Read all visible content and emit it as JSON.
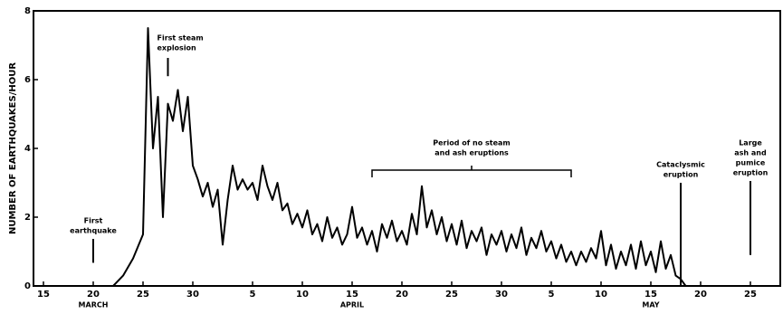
{
  "chart_data": {
    "type": "line",
    "y_label": "NUMBER OF EARTHQUAKES/HOUR",
    "x": [
      81,
      82,
      83,
      84,
      84.5,
      85,
      85.5,
      86,
      86.5,
      87,
      87.5,
      88,
      88.5,
      89,
      89.5,
      90,
      90.5,
      91,
      91.5,
      92,
      92.5,
      93,
      93.5,
      94,
      94.5,
      95,
      95.5,
      96,
      96.5,
      97,
      97.5,
      98,
      98.5,
      99,
      99.5,
      100,
      100.5,
      101,
      101.5,
      102,
      102.5,
      103,
      103.5,
      104,
      104.5,
      105,
      105.5,
      106,
      106.5,
      107,
      107.5,
      108,
      108.5,
      109,
      109.5,
      110,
      110.5,
      111,
      111.5,
      112,
      112.5,
      113,
      113.5,
      114,
      114.5,
      115,
      115.5,
      116,
      116.5,
      117,
      117.5,
      118,
      118.5,
      119,
      119.5,
      120,
      120.5,
      121,
      121.5,
      122,
      122.5,
      123,
      123.5,
      124,
      124.5,
      125,
      125.5,
      126,
      126.5,
      127,
      127.5,
      128,
      128.5,
      129,
      129.5,
      130,
      130.5,
      131,
      131.5,
      132,
      132.5,
      133,
      133.5,
      134,
      134.5,
      135,
      135.5,
      136,
      136.5,
      137,
      137.5,
      138,
      138.5
    ],
    "series": [
      {
        "color": "#000000",
        "values": [
          0,
          0.3,
          0.8,
          1.5,
          7.5,
          4,
          5.5,
          2,
          5.3,
          4.8,
          5.7,
          4.5,
          5.5,
          3.5,
          3.1,
          2.6,
          3,
          2.3,
          2.8,
          1.2,
          2.5,
          3.5,
          2.8,
          3.1,
          2.8,
          3.0,
          2.5,
          3.5,
          2.9,
          2.5,
          3.0,
          2.2,
          2.4,
          1.8,
          2.1,
          1.7,
          2.2,
          1.5,
          1.8,
          1.3,
          2.0,
          1.4,
          1.7,
          1.2,
          1.5,
          2.3,
          1.4,
          1.7,
          1.2,
          1.6,
          1.0,
          1.8,
          1.4,
          1.9,
          1.3,
          1.6,
          1.2,
          2.1,
          1.5,
          2.9,
          1.7,
          2.2,
          1.5,
          2.0,
          1.3,
          1.8,
          1.2,
          1.9,
          1.1,
          1.6,
          1.3,
          1.7,
          0.9,
          1.5,
          1.2,
          1.6,
          1.0,
          1.5,
          1.1,
          1.7,
          0.9,
          1.4,
          1.1,
          1.6,
          1.0,
          1.3,
          0.8,
          1.2,
          0.7,
          1.0,
          0.6,
          1.0,
          0.7,
          1.1,
          0.8,
          1.6,
          0.6,
          1.2,
          0.5,
          1.0,
          0.6,
          1.2,
          0.5,
          1.3,
          0.6,
          1.0,
          0.4,
          1.3,
          0.5,
          0.9,
          0.3,
          0.2,
          0
        ]
      }
    ],
    "xlim": [
      73,
      148
    ],
    "xticks": [
      {
        "value": 74,
        "label": "15"
      },
      {
        "value": 79,
        "label": "20"
      },
      {
        "value": 84,
        "label": "25"
      },
      {
        "value": 89,
        "label": "30"
      },
      {
        "value": 95,
        "label": "5"
      },
      {
        "value": 100,
        "label": "10"
      },
      {
        "value": 105,
        "label": "15"
      },
      {
        "value": 110,
        "label": "20"
      },
      {
        "value": 115,
        "label": "25"
      },
      {
        "value": 120,
        "label": "30"
      },
      {
        "value": 125,
        "label": "5"
      },
      {
        "value": 130,
        "label": "10"
      },
      {
        "value": 135,
        "label": "15"
      },
      {
        "value": 140,
        "label": "20"
      },
      {
        "value": 145,
        "label": "25"
      }
    ],
    "months": [
      {
        "text": "MARCH",
        "x": 79
      },
      {
        "text": "APRIL",
        "x": 105
      },
      {
        "text": "MAY",
        "x": 135
      }
    ],
    "ylim": [
      0,
      8
    ],
    "yticks": [
      0,
      2,
      4,
      6,
      8
    ],
    "annotations": [
      {
        "lines": [
          "First",
          "earthquake"
        ],
        "x": 79,
        "y": 1.2
      },
      {
        "lines": [
          "First steam",
          "explosion"
        ],
        "x": 86.5,
        "y": 6.1
      },
      {
        "lines": [
          "Period of no steam",
          "and ash eruptions"
        ],
        "x": 117,
        "y": 3.6
      },
      {
        "lines": [
          "Cataclysmic",
          "eruption"
        ],
        "x": 138,
        "y": 0
      },
      {
        "lines": [
          "Large",
          "ash and",
          "pumice",
          "eruption"
        ],
        "x": 145,
        "y": 0.9
      }
    ],
    "period": [
      107,
      127
    ]
  }
}
